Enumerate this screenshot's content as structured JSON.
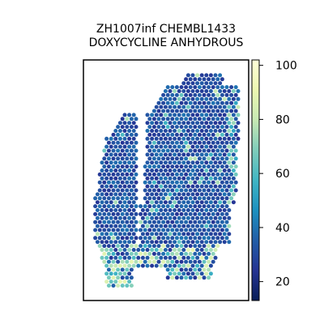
{
  "chart_data": {
    "type": "scatter",
    "title": "ZH1007inf CHEMBL1433",
    "subtitle": "DOXYCYCLINE ANHYDROUS",
    "xlabel": "",
    "ylabel": "",
    "axes_ticks_visible": false,
    "grid": false,
    "colormap": "YlGnBu_r",
    "colorbar": {
      "range": [
        13,
        102
      ],
      "ticks": [
        "20",
        "40",
        "60",
        "80",
        "100"
      ],
      "tick_values": [
        20,
        40,
        60,
        80,
        100
      ],
      "colors": [
        "#081d58",
        "#253494",
        "#225ea8",
        "#1d91c0",
        "#41b6c4",
        "#7fcdbb",
        "#c7e9b4",
        "#edf8b1",
        "#ffffd9"
      ]
    },
    "point_summary": {
      "description": "hexagonally arranged spots forming two tissue lobes; mostly values 20-45 with lighter (60-90) spots near bottom and right edges",
      "typical_value": 32
    }
  }
}
